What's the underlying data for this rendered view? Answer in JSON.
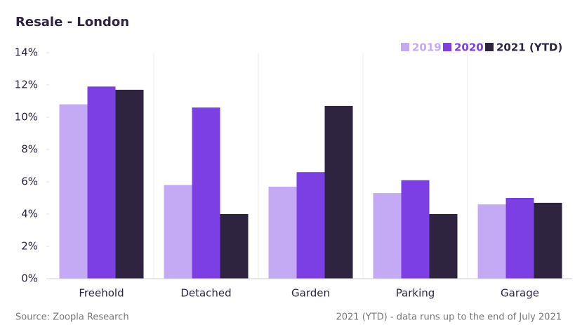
{
  "chart_data": {
    "type": "bar",
    "title": "Resale - London",
    "categories": [
      "Freehold",
      "Detached",
      "Garden",
      "Parking",
      "Garage"
    ],
    "series": [
      {
        "name": "2019",
        "color": "#c4aaf5",
        "values": [
          10.8,
          5.8,
          5.7,
          5.3,
          4.6
        ]
      },
      {
        "name": "2020",
        "color": "#7b3fe4",
        "values": [
          11.9,
          10.6,
          6.6,
          6.1,
          5.0
        ]
      },
      {
        "name": "2021 (YTD)",
        "color": "#2e2440",
        "values": [
          11.7,
          4.0,
          10.7,
          4.0,
          4.7
        ]
      }
    ],
    "ylim": [
      0,
      14
    ],
    "yticks": [
      {
        "value": 0,
        "label": "0%"
      },
      {
        "value": 2,
        "label": "2%"
      },
      {
        "value": 4,
        "label": "4%"
      },
      {
        "value": 6,
        "label": "6%"
      },
      {
        "value": 8,
        "label": "8%"
      },
      {
        "value": 10,
        "label": "10%"
      },
      {
        "value": 12,
        "label": "12%"
      },
      {
        "value": 14,
        "label": "14%"
      }
    ],
    "legend": "top-right",
    "source": "Source: Zoopla Research",
    "note": "2021  (YTD) - data runs up to the end of July 2021"
  }
}
